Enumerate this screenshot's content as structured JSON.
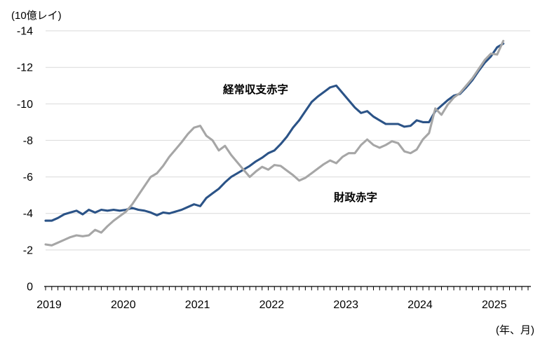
{
  "chart_data": {
    "type": "line",
    "title": "",
    "ylabel": "(10億レイ)",
    "xlabel": "(年、月)",
    "x_start": "2019-01",
    "x_end": "2025-03",
    "x_frequency": "monthly",
    "x_tick_labels": [
      "2019",
      "2020",
      "2021",
      "2022",
      "2023",
      "2024",
      "2025"
    ],
    "y_ticks": [
      0,
      -2,
      -4,
      -6,
      -8,
      -10,
      -12,
      -14
    ],
    "y_tick_labels": [
      "0",
      "-2",
      "-4",
      "-6",
      "-8",
      "-10",
      "-12",
      "-14"
    ],
    "ylim": [
      0,
      -14
    ],
    "y_axis_inverted": true,
    "grid": true,
    "legend_position": "inline-labels-on-chart",
    "colors": {
      "grid": "#d9d9d9",
      "axis": "#000000",
      "text": "#000000"
    },
    "series": [
      {
        "key": "current-account-deficit",
        "name": "経常収支赤字",
        "color": "#2b5387",
        "values": [
          -3.6,
          -3.6,
          -3.75,
          -3.95,
          -4.05,
          -4.15,
          -3.95,
          -4.2,
          -4.05,
          -4.2,
          -4.15,
          -4.2,
          -4.15,
          -4.2,
          -4.3,
          -4.2,
          -4.15,
          -4.05,
          -3.9,
          -4.05,
          -4.0,
          -4.1,
          -4.2,
          -4.35,
          -4.5,
          -4.4,
          -4.85,
          -5.1,
          -5.35,
          -5.7,
          -6.0,
          -6.2,
          -6.4,
          -6.6,
          -6.85,
          -7.05,
          -7.3,
          -7.45,
          -7.8,
          -8.2,
          -8.7,
          -9.1,
          -9.6,
          -10.1,
          -10.4,
          -10.65,
          -10.9,
          -11.0,
          -10.6,
          -10.2,
          -9.8,
          -9.5,
          -9.6,
          -9.3,
          -9.1,
          -8.9,
          -8.9,
          -8.9,
          -8.75,
          -8.8,
          -9.1,
          -9.0,
          -9.0,
          -9.6,
          -9.9,
          -10.2,
          -10.45,
          -10.55,
          -10.9,
          -11.3,
          -11.8,
          -12.25,
          -12.6,
          -13.1,
          -13.3
        ]
      },
      {
        "key": "fiscal-deficit",
        "name": "財政赤字",
        "color": "#a6a6a6",
        "values": [
          -2.3,
          -2.25,
          -2.4,
          -2.55,
          -2.7,
          -2.8,
          -2.75,
          -2.8,
          -3.1,
          -2.95,
          -3.3,
          -3.6,
          -3.85,
          -4.1,
          -4.5,
          -5.0,
          -5.5,
          -6.0,
          -6.2,
          -6.6,
          -7.1,
          -7.5,
          -7.9,
          -8.35,
          -8.7,
          -8.8,
          -8.25,
          -8.0,
          -7.45,
          -7.7,
          -7.2,
          -6.8,
          -6.4,
          -6.0,
          -6.3,
          -6.55,
          -6.4,
          -6.65,
          -6.6,
          -6.35,
          -6.1,
          -5.8,
          -5.95,
          -6.2,
          -6.45,
          -6.7,
          -6.9,
          -6.75,
          -7.1,
          -7.3,
          -7.3,
          -7.75,
          -8.05,
          -7.75,
          -7.6,
          -7.75,
          -7.95,
          -7.85,
          -7.4,
          -7.3,
          -7.5,
          -8.05,
          -8.4,
          -9.75,
          -9.4,
          -9.95,
          -10.35,
          -10.6,
          -11.0,
          -11.4,
          -11.9,
          -12.4,
          -12.75,
          -12.7,
          -13.45
        ]
      }
    ]
  }
}
